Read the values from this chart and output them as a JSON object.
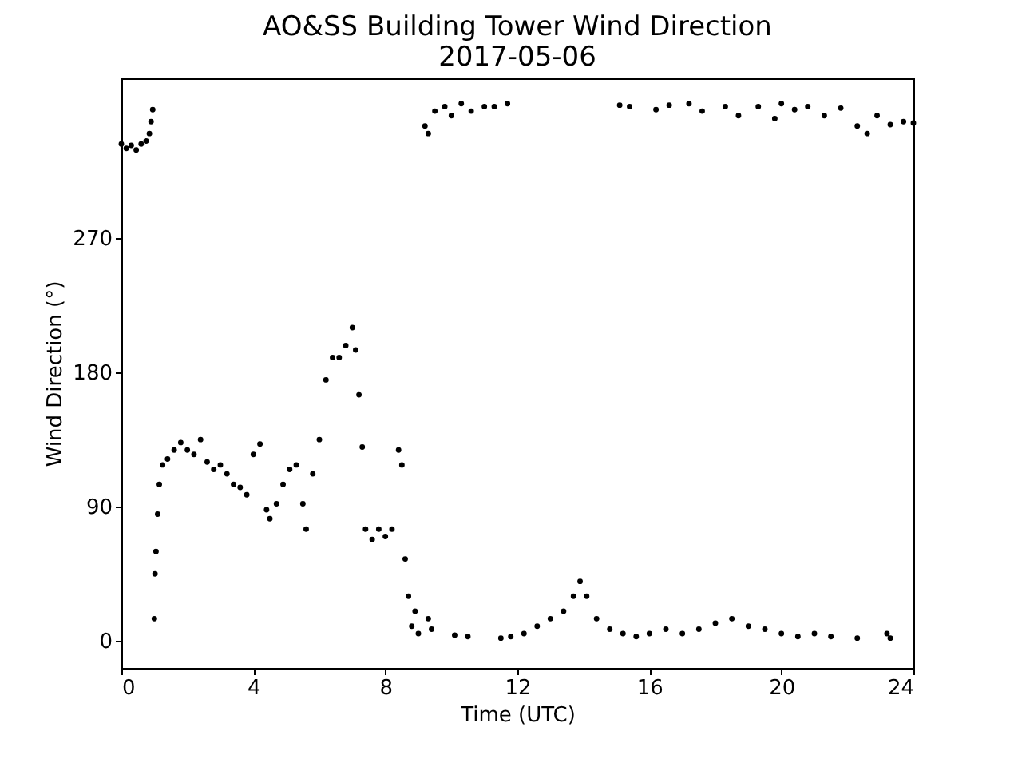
{
  "chart_data": {
    "type": "scatter",
    "title": "AO&SS Building Tower Wind Direction",
    "subtitle": "2017-05-06",
    "xlabel": "Time (UTC)",
    "ylabel": "Wind Direction (°)",
    "xlim": [
      0,
      24
    ],
    "xticks": [
      0,
      4,
      8,
      12,
      16,
      20,
      24
    ],
    "ylim": [
      -18,
      377
    ],
    "yticks": [
      0,
      90,
      180,
      270
    ],
    "grid": false,
    "marker": "circle",
    "series": [
      {
        "color": "#000000",
        "x": [
          0,
          0.15,
          0.3,
          0.45,
          0.6,
          0.75,
          0.85,
          0.9,
          0.95,
          1.0,
          1.02,
          1.05,
          1.1,
          1.15,
          1.25,
          1.4,
          1.6,
          1.8,
          2.0,
          2.2,
          2.4,
          2.6,
          2.8,
          3.0,
          3.2,
          3.4,
          3.6,
          3.8,
          4.0,
          4.2,
          4.4,
          4.5,
          4.7,
          4.9,
          5.1,
          5.3,
          5.5,
          5.6,
          5.8,
          6.0,
          6.2,
          6.4,
          6.6,
          6.8,
          7.0,
          7.1,
          7.2,
          7.3,
          7.4,
          7.6,
          7.8,
          8.0,
          8.2,
          8.4,
          8.5,
          8.6,
          8.7,
          8.8,
          8.9,
          9.0,
          9.3,
          9.4,
          10.1,
          10.5,
          11.5,
          11.8,
          12.2,
          12.6,
          13.0,
          13.4,
          13.7,
          13.9,
          14.1,
          14.4,
          14.8,
          15.2,
          15.6,
          16.0,
          16.5,
          17.0,
          17.5,
          18.0,
          18.5,
          19.0,
          19.5,
          20.0,
          20.5,
          21.0,
          21.5,
          22.3,
          23.2,
          23.3,
          9.2,
          9.3,
          9.5,
          9.8,
          10.0,
          10.3,
          10.6,
          11.0,
          11.3,
          11.7,
          15.1,
          15.4,
          16.2,
          16.6,
          17.2,
          17.6,
          18.3,
          18.7,
          19.3,
          19.8,
          20.0,
          20.4,
          20.8,
          21.3,
          21.8,
          22.3,
          22.6,
          22.9,
          23.3,
          23.7,
          24.0
        ],
        "values": [
          333,
          330,
          332,
          329,
          333,
          335,
          340,
          348,
          356,
          15,
          45,
          60,
          85,
          105,
          118,
          122,
          128,
          133,
          128,
          125,
          135,
          120,
          115,
          118,
          112,
          105,
          103,
          98,
          125,
          132,
          88,
          82,
          92,
          105,
          115,
          118,
          92,
          75,
          112,
          135,
          175,
          190,
          190,
          198,
          210,
          195,
          165,
          130,
          75,
          68,
          75,
          70,
          75,
          128,
          118,
          55,
          30,
          10,
          20,
          5,
          15,
          8,
          4,
          3,
          2,
          3,
          5,
          10,
          15,
          20,
          30,
          40,
          30,
          15,
          8,
          5,
          3,
          5,
          8,
          5,
          8,
          12,
          15,
          10,
          8,
          5,
          3,
          5,
          3,
          2,
          5,
          2,
          345,
          340,
          355,
          358,
          352,
          360,
          355,
          358,
          358,
          360,
          359,
          358,
          356,
          359,
          360,
          355,
          358,
          352,
          358,
          350,
          360,
          356,
          358,
          352,
          357,
          345,
          340,
          352,
          346,
          348,
          347
        ]
      }
    ]
  }
}
